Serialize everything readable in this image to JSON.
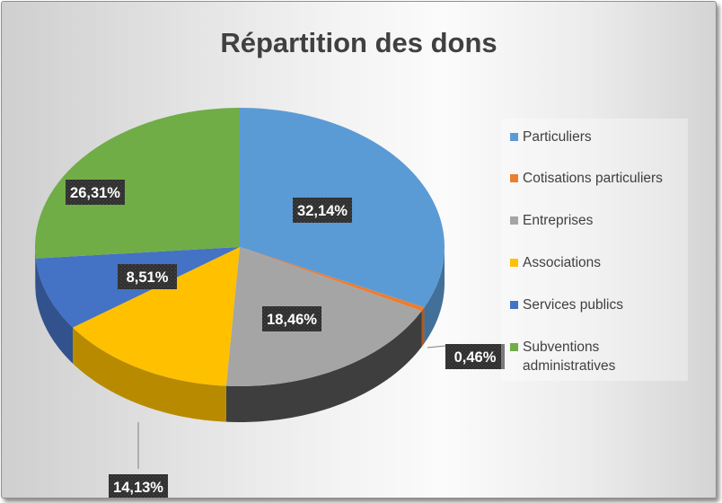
{
  "chart_data": {
    "type": "pie",
    "title": "Répartition des dons",
    "slices": [
      {
        "label": "Particuliers",
        "value": 32.14,
        "value_label": "32,14%",
        "color": "#5B9BD5"
      },
      {
        "label": "Cotisations particuliers",
        "value": 0.46,
        "value_label": "0,46%",
        "color": "#ED7D31"
      },
      {
        "label": "Entreprises",
        "value": 18.46,
        "value_label": "18,46%",
        "color": "#A5A5A5"
      },
      {
        "label": "Associations",
        "value": 14.13,
        "value_label": "14,13%",
        "color": "#FFC000"
      },
      {
        "label": "Services publics",
        "value": 8.51,
        "value_label": "8,51%",
        "color": "#4472C4"
      },
      {
        "label": "Subventions administratives",
        "value": 26.31,
        "value_label": "26,31%",
        "color": "#70AD47"
      }
    ],
    "legend_position": "right",
    "style": "3d-pie"
  }
}
